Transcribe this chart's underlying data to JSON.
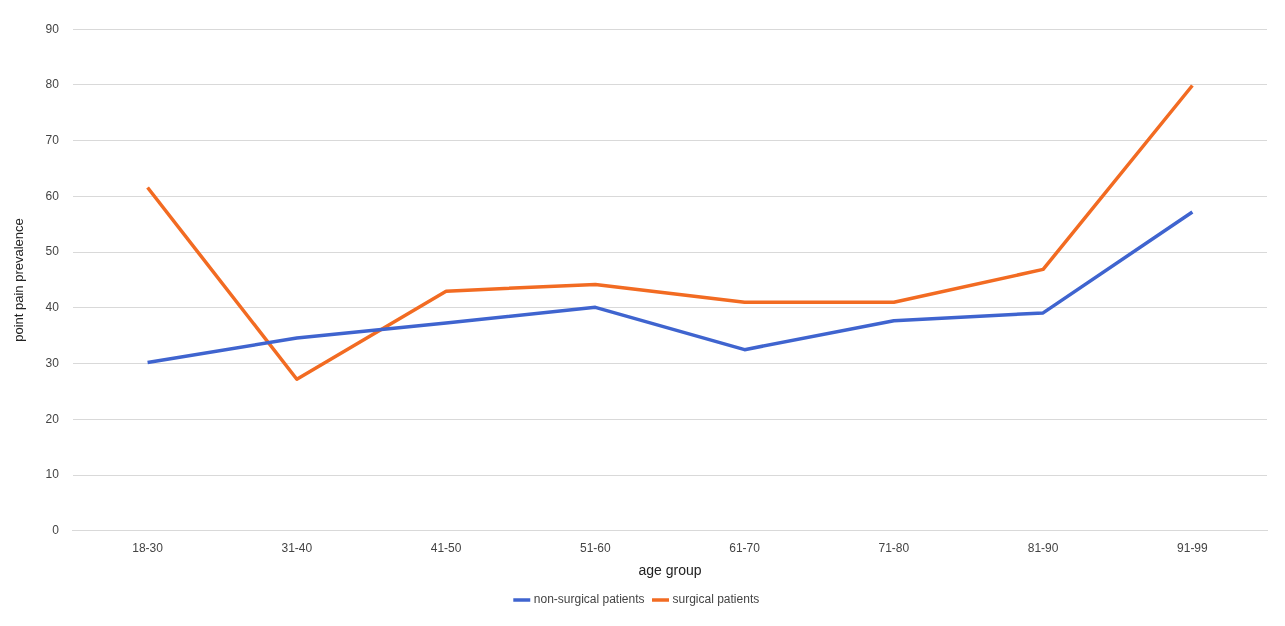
{
  "chart_data": {
    "type": "line",
    "xlabel": "age group",
    "ylabel": "point pain prevalence",
    "categories": [
      "18-30",
      "31-40",
      "41-50",
      "51-60",
      "61-70",
      "71-80",
      "81-90",
      "91-99"
    ],
    "series": [
      {
        "name": "non-surgical patients",
        "color": "#3f64cf",
        "values": [
          30.2,
          34.6,
          37.3,
          40.1,
          32.5,
          37.7,
          39.1,
          57.2
        ]
      },
      {
        "name": "surgical patients",
        "color": "#f26b22",
        "values": [
          61.6,
          27.2,
          43.0,
          44.2,
          41.0,
          41.0,
          46.9,
          79.9
        ]
      }
    ],
    "ylim": [
      0,
      90
    ],
    "yticks": [
      0,
      10,
      20,
      30,
      40,
      50,
      60,
      70,
      80,
      90
    ],
    "grid": "y",
    "legend": "bottom",
    "marker": "none",
    "line_style": "solid"
  }
}
